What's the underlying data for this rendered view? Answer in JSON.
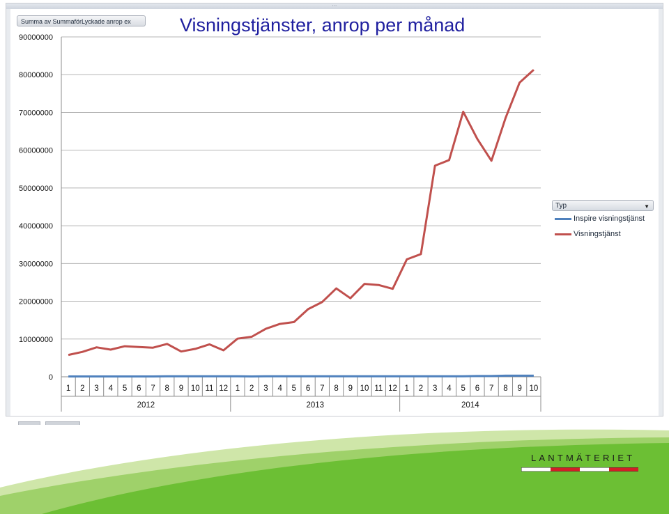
{
  "window": {
    "title": "Visningstjänster, anrop per månad",
    "field_button": "Summa av SummaförLyckade anrop ex"
  },
  "legend": {
    "dropdown_label": "Typ",
    "entries": [
      {
        "label": "Inspire visningstjänst",
        "color": "#4f81bd"
      },
      {
        "label": "Visningstjänst",
        "color": "#c0504d"
      }
    ]
  },
  "brand": {
    "logo_text": "LANTMÄTERIET",
    "wave_colors": [
      "#cfe6a9",
      "#9fd16a",
      "#6cbf34"
    ]
  },
  "chart_data": {
    "type": "line",
    "title": "Visningstjänster, anrop per månad",
    "xlabel": "",
    "ylabel": "",
    "ylim": [
      0,
      90000000
    ],
    "yticks": [
      "0",
      "10000000",
      "20000000",
      "30000000",
      "40000000",
      "50000000",
      "60000000",
      "70000000",
      "80000000",
      "90000000"
    ],
    "grid": true,
    "legend_position": "right",
    "categories": [
      "1",
      "2",
      "3",
      "4",
      "5",
      "6",
      "7",
      "8",
      "9",
      "10",
      "11",
      "12",
      "1",
      "2",
      "3",
      "4",
      "5",
      "6",
      "7",
      "8",
      "9",
      "10",
      "11",
      "12",
      "1",
      "2",
      "3",
      "4",
      "5",
      "6",
      "7",
      "8",
      "9",
      "10"
    ],
    "groups": [
      {
        "label": "2012",
        "count": 12
      },
      {
        "label": "2013",
        "count": 12
      },
      {
        "label": "2014",
        "count": 10
      }
    ],
    "series": [
      {
        "name": "Inspire visningstjänst",
        "color": "#4f81bd",
        "values": [
          100000,
          100000,
          100000,
          100000,
          100000,
          100000,
          100000,
          150000,
          150000,
          150000,
          150000,
          150000,
          150000,
          100000,
          150000,
          150000,
          150000,
          150000,
          150000,
          150000,
          150000,
          150000,
          150000,
          150000,
          150000,
          150000,
          150000,
          150000,
          150000,
          200000,
          200000,
          300000,
          300000,
          300000
        ]
      },
      {
        "name": "Visningstjänst",
        "color": "#c0504d",
        "values": [
          5800000,
          6600000,
          7800000,
          7200000,
          8100000,
          7900000,
          7700000,
          8700000,
          6700000,
          7400000,
          8600000,
          7000000,
          10100000,
          10600000,
          12700000,
          14000000,
          14500000,
          17900000,
          19800000,
          23400000,
          20800000,
          24600000,
          24300000,
          23300000,
          31100000,
          32500000,
          55900000,
          57400000,
          70200000,
          63000000,
          57200000,
          68500000,
          77900000,
          81300000
        ]
      }
    ]
  }
}
